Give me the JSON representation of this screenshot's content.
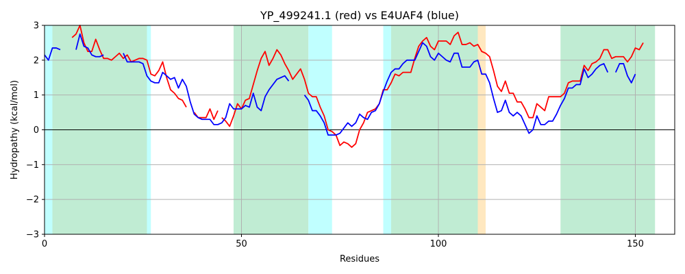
{
  "chart_data": {
    "type": "line",
    "title": "YP_499241.1 (red) vs E4UAF4 (blue)",
    "xlabel": "Residues",
    "ylabel": "Hydropathy (kcal/mol)",
    "xlim": [
      0,
      160
    ],
    "ylim": [
      -3,
      3
    ],
    "xticks": [
      0,
      50,
      100,
      150
    ],
    "yticks": [
      -3,
      -2,
      -1,
      0,
      1,
      2,
      3
    ],
    "grid": true,
    "zero_line": true,
    "region_colors": {
      "green": "#c0ecd3",
      "cyan": "#c0ffff",
      "orange": "#ffe8c0"
    },
    "regions": [
      {
        "start": 0,
        "end": 2,
        "color": "cyan"
      },
      {
        "start": 2,
        "end": 26,
        "color": "green"
      },
      {
        "start": 26,
        "end": 27,
        "color": "cyan"
      },
      {
        "start": 48,
        "end": 67,
        "color": "green"
      },
      {
        "start": 67,
        "end": 73,
        "color": "cyan"
      },
      {
        "start": 86,
        "end": 88,
        "color": "cyan"
      },
      {
        "start": 88,
        "end": 110,
        "color": "green"
      },
      {
        "start": 110,
        "end": 112,
        "color": "orange"
      },
      {
        "start": 131,
        "end": 155,
        "color": "green"
      }
    ],
    "series": [
      {
        "color": "#ff0000",
        "points": [
          [
            7,
            2.65
          ],
          [
            8,
            2.75
          ],
          [
            9,
            3.0
          ],
          [
            10,
            2.5
          ],
          [
            11,
            2.25
          ],
          [
            12,
            2.25
          ],
          [
            13,
            2.6
          ],
          [
            14,
            2.3
          ],
          [
            15,
            2.05
          ],
          [
            16,
            2.05
          ],
          [
            17,
            2.0
          ],
          [
            18,
            2.1
          ],
          [
            19,
            2.2
          ],
          [
            20,
            2.05
          ],
          [
            21,
            2.15
          ],
          [
            22,
            1.95
          ],
          [
            23,
            2.0
          ],
          [
            24,
            2.05
          ],
          [
            25,
            2.05
          ],
          [
            26,
            2.0
          ],
          [
            27,
            1.6
          ],
          [
            28,
            1.55
          ],
          [
            29,
            1.7
          ],
          [
            30,
            1.95
          ],
          [
            31,
            1.5
          ],
          [
            32,
            1.15
          ],
          [
            33,
            1.05
          ],
          [
            34,
            0.9
          ],
          [
            35,
            0.85
          ],
          [
            36,
            0.65
          ],
          null,
          [
            38,
            0.5
          ],
          [
            39,
            0.35
          ],
          [
            40,
            0.35
          ],
          [
            41,
            0.35
          ],
          [
            42,
            0.6
          ],
          [
            43,
            0.3
          ],
          [
            44,
            0.55
          ],
          null,
          [
            45,
            0.35
          ],
          [
            46,
            0.25
          ],
          [
            47,
            0.1
          ],
          [
            48,
            0.4
          ],
          [
            49,
            0.75
          ],
          [
            50,
            0.6
          ],
          [
            51,
            0.85
          ],
          [
            52,
            0.9
          ],
          [
            53,
            1.3
          ],
          [
            54,
            1.7
          ],
          [
            55,
            2.05
          ],
          [
            56,
            2.25
          ],
          [
            57,
            1.85
          ],
          [
            58,
            2.05
          ],
          [
            59,
            2.3
          ],
          [
            60,
            2.15
          ],
          [
            61,
            1.9
          ],
          [
            62,
            1.7
          ],
          [
            63,
            1.45
          ],
          [
            64,
            1.6
          ],
          [
            65,
            1.75
          ],
          [
            66,
            1.45
          ],
          [
            67,
            1.05
          ],
          [
            68,
            0.95
          ],
          [
            69,
            0.95
          ],
          [
            70,
            0.65
          ],
          [
            71,
            0.4
          ],
          [
            72,
            0.0
          ],
          [
            73,
            -0.05
          ],
          [
            74,
            -0.15
          ],
          [
            75,
            -0.45
          ],
          [
            76,
            -0.35
          ],
          [
            77,
            -0.4
          ],
          [
            78,
            -0.5
          ],
          [
            79,
            -0.4
          ],
          [
            80,
            0.0
          ],
          [
            81,
            0.2
          ],
          [
            82,
            0.5
          ],
          [
            83,
            0.55
          ],
          [
            84,
            0.6
          ],
          [
            85,
            0.75
          ],
          [
            86,
            1.15
          ],
          [
            87,
            1.15
          ],
          [
            88,
            1.35
          ],
          [
            89,
            1.6
          ],
          [
            90,
            1.55
          ],
          [
            91,
            1.65
          ],
          [
            92,
            1.65
          ],
          [
            93,
            1.65
          ],
          [
            94,
            2.05
          ],
          [
            95,
            2.4
          ],
          [
            96,
            2.55
          ],
          [
            97,
            2.65
          ],
          [
            98,
            2.4
          ],
          [
            99,
            2.3
          ],
          [
            100,
            2.55
          ],
          [
            101,
            2.55
          ],
          [
            102,
            2.55
          ],
          [
            103,
            2.45
          ],
          [
            104,
            2.7
          ],
          [
            105,
            2.8
          ],
          [
            106,
            2.45
          ],
          [
            107,
            2.45
          ],
          [
            108,
            2.5
          ],
          [
            109,
            2.4
          ],
          [
            110,
            2.45
          ],
          [
            111,
            2.25
          ],
          [
            112,
            2.2
          ],
          [
            113,
            2.1
          ],
          [
            114,
            1.7
          ],
          [
            115,
            1.25
          ],
          [
            116,
            1.1
          ],
          [
            117,
            1.4
          ],
          [
            118,
            1.05
          ],
          [
            119,
            1.05
          ],
          [
            120,
            0.8
          ],
          [
            121,
            0.8
          ],
          [
            122,
            0.6
          ],
          [
            123,
            0.35
          ],
          [
            124,
            0.35
          ],
          [
            125,
            0.75
          ],
          [
            126,
            0.65
          ],
          [
            127,
            0.55
          ],
          [
            128,
            0.95
          ],
          [
            129,
            0.95
          ],
          [
            130,
            0.95
          ],
          [
            131,
            0.95
          ],
          [
            132,
            1.05
          ],
          [
            133,
            1.35
          ],
          [
            134,
            1.4
          ],
          [
            135,
            1.4
          ],
          [
            136,
            1.4
          ],
          [
            137,
            1.85
          ],
          [
            138,
            1.7
          ],
          [
            139,
            1.9
          ],
          [
            140,
            1.95
          ],
          [
            141,
            2.05
          ],
          [
            142,
            2.3
          ],
          [
            143,
            2.3
          ],
          [
            144,
            2.05
          ],
          [
            145,
            2.1
          ],
          [
            146,
            2.1
          ],
          [
            147,
            2.1
          ],
          [
            148,
            1.95
          ],
          [
            149,
            2.1
          ],
          [
            150,
            2.35
          ],
          [
            151,
            2.3
          ],
          [
            152,
            2.5
          ]
        ]
      },
      {
        "color": "#0000ff",
        "points": [
          [
            0,
            2.15
          ],
          [
            1,
            2.0
          ],
          [
            2,
            2.35
          ],
          [
            3,
            2.35
          ],
          [
            4,
            2.3
          ],
          null,
          [
            8,
            2.3
          ],
          [
            9,
            2.75
          ],
          [
            10,
            2.4
          ],
          [
            11,
            2.35
          ],
          [
            12,
            2.15
          ],
          [
            13,
            2.1
          ],
          [
            14,
            2.1
          ],
          [
            15,
            2.15
          ],
          null,
          [
            20,
            2.2
          ],
          [
            21,
            1.95
          ],
          [
            22,
            1.95
          ],
          [
            23,
            1.95
          ],
          [
            24,
            1.95
          ],
          [
            25,
            1.9
          ],
          [
            26,
            1.55
          ],
          [
            27,
            1.4
          ],
          [
            28,
            1.35
          ],
          [
            29,
            1.35
          ],
          [
            30,
            1.65
          ],
          [
            31,
            1.55
          ],
          [
            32,
            1.45
          ],
          [
            33,
            1.5
          ],
          [
            34,
            1.2
          ],
          [
            35,
            1.45
          ],
          [
            36,
            1.25
          ],
          [
            37,
            0.8
          ],
          [
            38,
            0.45
          ],
          [
            39,
            0.35
          ],
          [
            40,
            0.3
          ],
          [
            41,
            0.3
          ],
          [
            42,
            0.3
          ],
          [
            43,
            0.15
          ],
          [
            44,
            0.15
          ],
          [
            45,
            0.2
          ],
          [
            46,
            0.35
          ],
          [
            47,
            0.75
          ],
          [
            48,
            0.6
          ],
          [
            49,
            0.6
          ],
          [
            50,
            0.6
          ],
          [
            51,
            0.7
          ],
          [
            52,
            0.65
          ],
          [
            53,
            1.05
          ],
          [
            54,
            0.65
          ],
          [
            55,
            0.55
          ],
          [
            56,
            0.95
          ],
          [
            57,
            1.15
          ],
          [
            58,
            1.3
          ],
          [
            59,
            1.45
          ],
          [
            60,
            1.5
          ],
          [
            61,
            1.55
          ],
          [
            62,
            1.4
          ],
          null,
          [
            66,
            1.0
          ],
          [
            67,
            0.85
          ],
          [
            68,
            0.55
          ],
          [
            69,
            0.55
          ],
          [
            70,
            0.4
          ],
          [
            71,
            0.2
          ],
          [
            72,
            -0.15
          ],
          [
            73,
            -0.15
          ],
          [
            74,
            -0.15
          ],
          [
            75,
            -0.1
          ],
          [
            76,
            0.05
          ],
          [
            77,
            0.2
          ],
          [
            78,
            0.1
          ],
          [
            79,
            0.2
          ],
          [
            80,
            0.45
          ],
          [
            81,
            0.35
          ],
          [
            82,
            0.3
          ],
          [
            83,
            0.5
          ],
          [
            84,
            0.55
          ],
          [
            85,
            0.75
          ],
          [
            86,
            1.1
          ],
          [
            87,
            1.4
          ],
          [
            88,
            1.65
          ],
          [
            89,
            1.75
          ],
          [
            90,
            1.75
          ],
          [
            91,
            1.9
          ],
          [
            92,
            2.0
          ],
          [
            93,
            2.0
          ],
          [
            94,
            2.0
          ],
          [
            95,
            2.25
          ],
          [
            96,
            2.5
          ],
          [
            97,
            2.4
          ],
          [
            98,
            2.1
          ],
          [
            99,
            2.0
          ],
          [
            100,
            2.2
          ],
          [
            101,
            2.1
          ],
          [
            102,
            2.0
          ],
          [
            103,
            1.95
          ],
          [
            104,
            2.2
          ],
          [
            105,
            2.2
          ],
          [
            106,
            1.8
          ],
          [
            107,
            1.8
          ],
          [
            108,
            1.8
          ],
          [
            109,
            1.95
          ],
          [
            110,
            2.0
          ],
          [
            111,
            1.6
          ],
          [
            112,
            1.6
          ],
          [
            113,
            1.35
          ],
          [
            114,
            0.9
          ],
          [
            115,
            0.5
          ],
          [
            116,
            0.55
          ],
          [
            117,
            0.85
          ],
          [
            118,
            0.5
          ],
          [
            119,
            0.4
          ],
          [
            120,
            0.5
          ],
          [
            121,
            0.4
          ],
          [
            122,
            0.15
          ],
          [
            123,
            -0.1
          ],
          [
            124,
            0.0
          ],
          [
            125,
            0.4
          ],
          [
            126,
            0.15
          ],
          [
            127,
            0.15
          ],
          [
            128,
            0.25
          ],
          [
            129,
            0.25
          ],
          [
            130,
            0.45
          ],
          [
            131,
            0.7
          ],
          [
            132,
            0.9
          ],
          [
            133,
            1.2
          ],
          [
            134,
            1.2
          ],
          [
            135,
            1.3
          ],
          [
            136,
            1.3
          ],
          [
            137,
            1.75
          ],
          [
            138,
            1.5
          ],
          [
            139,
            1.6
          ],
          [
            140,
            1.75
          ],
          [
            141,
            1.85
          ],
          [
            142,
            1.9
          ],
          [
            143,
            1.65
          ],
          null,
          [
            145,
            1.65
          ],
          [
            146,
            1.9
          ],
          [
            147,
            1.9
          ],
          [
            148,
            1.55
          ],
          [
            149,
            1.35
          ],
          [
            150,
            1.6
          ]
        ]
      }
    ]
  }
}
